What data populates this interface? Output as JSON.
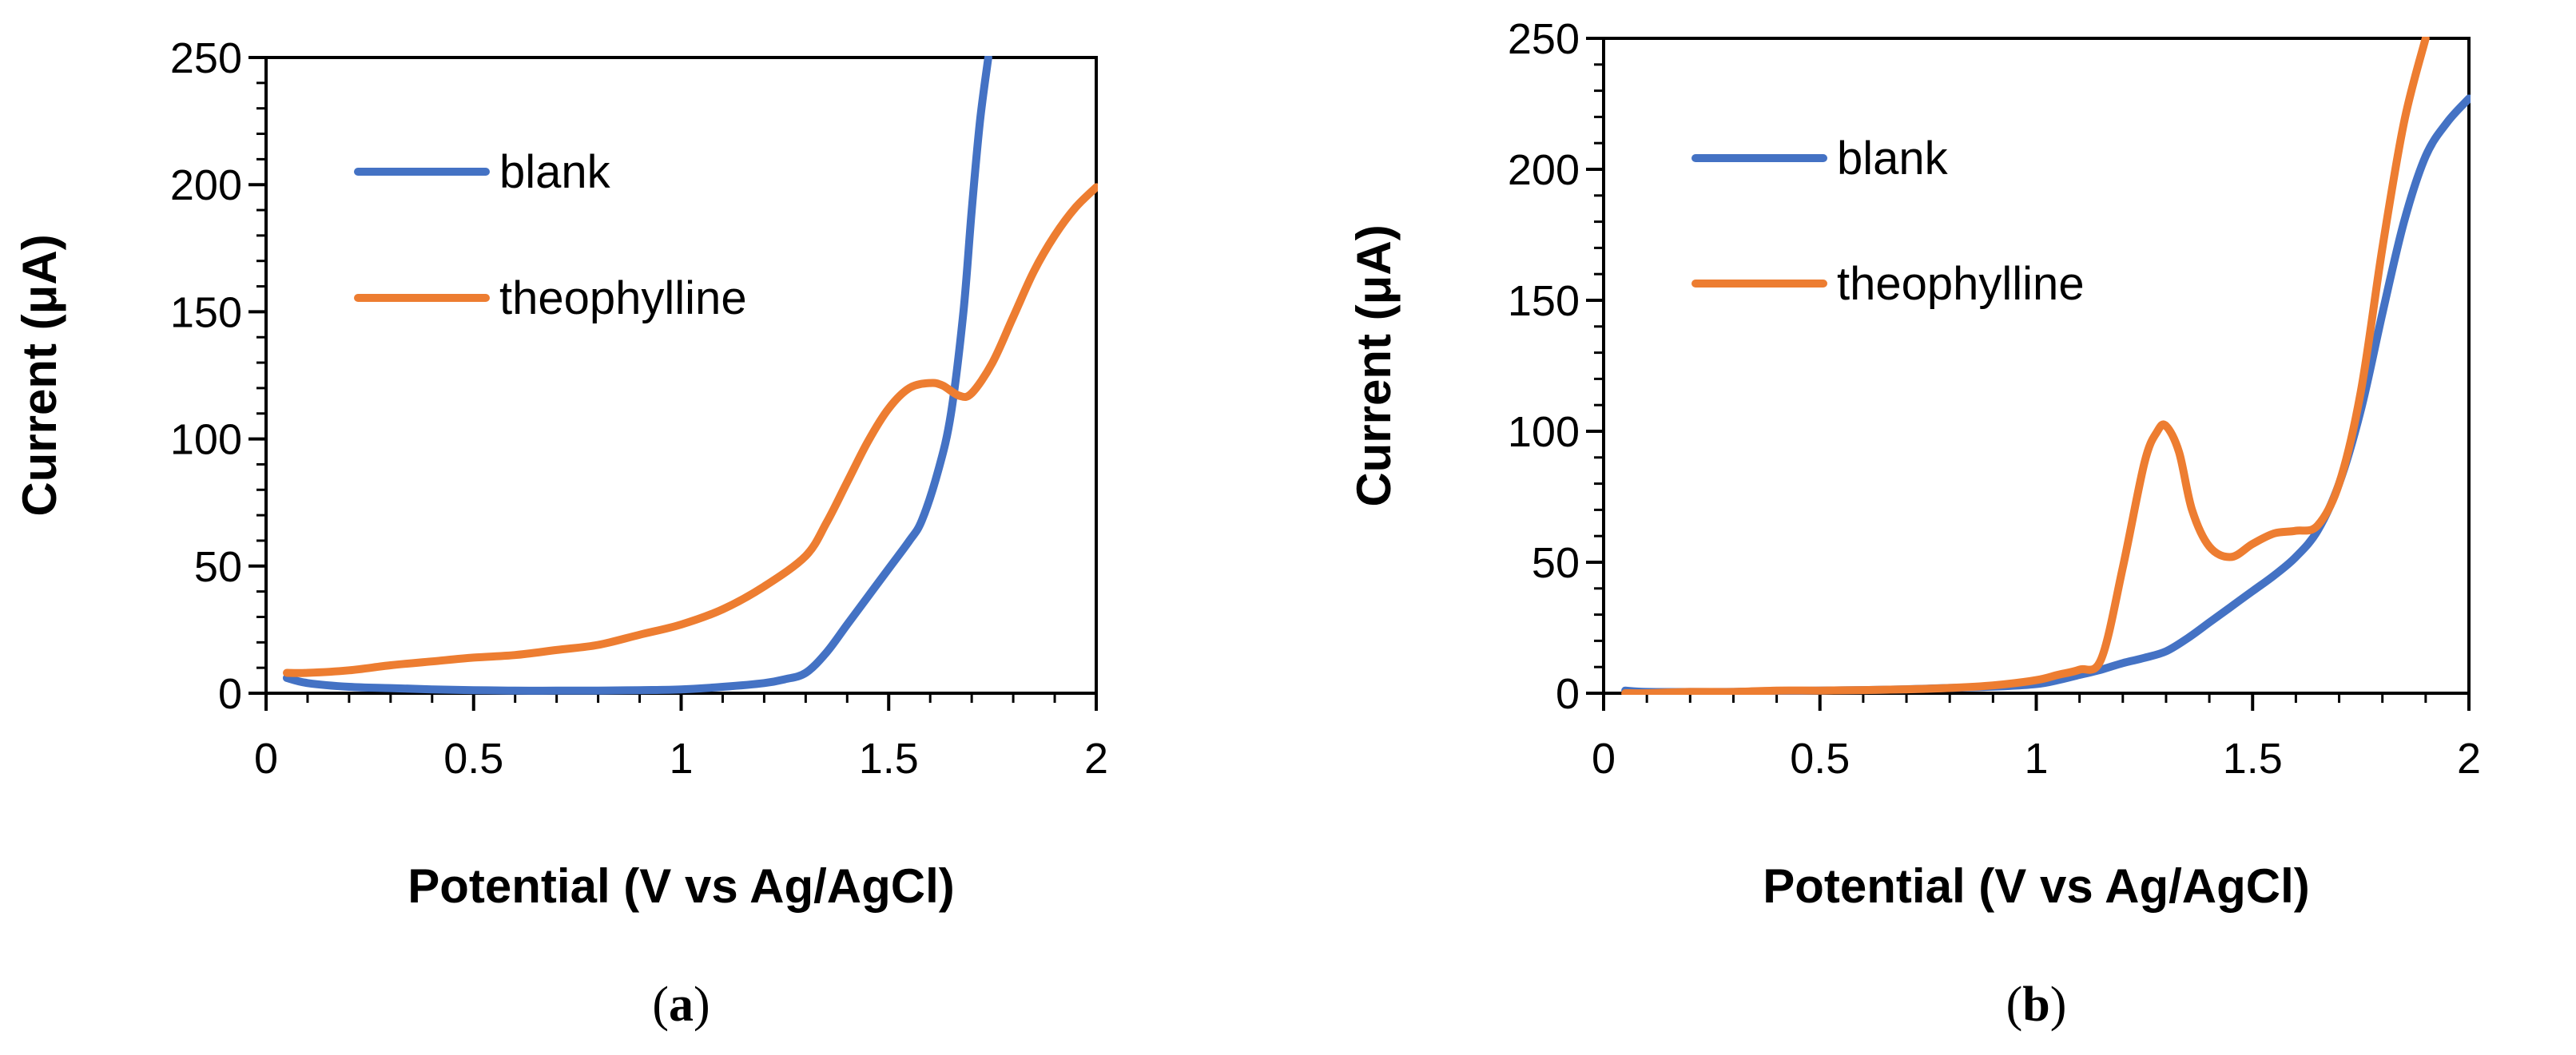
{
  "chart_data": [
    {
      "type": "line",
      "panel_label": "a",
      "caption_open": "(",
      "caption_close": ")",
      "title": "",
      "xlabel": "Potential (V vs Ag/AgCl)",
      "ylabel": "Current (μA)",
      "xlim": [
        0,
        2
      ],
      "ylim": [
        0,
        250
      ],
      "xticks": [
        0,
        0.5,
        1,
        1.5,
        2
      ],
      "xtick_labels": [
        "0",
        "0.5",
        "1",
        "1.5",
        "2"
      ],
      "yticks": [
        0,
        50,
        100,
        150,
        200,
        250
      ],
      "ytick_labels": [
        "0",
        "50",
        "100",
        "150",
        "200",
        "250"
      ],
      "grid": false,
      "legend_position": "top-left",
      "series": [
        {
          "name": "blank",
          "color": "#4472C4",
          "x": [
            0.05,
            0.1,
            0.2,
            0.3,
            0.4,
            0.5,
            0.6,
            0.7,
            0.8,
            0.9,
            1.0,
            1.1,
            1.2,
            1.25,
            1.3,
            1.35,
            1.4,
            1.45,
            1.5,
            1.55,
            1.58,
            1.62,
            1.65,
            1.68,
            1.7,
            1.72,
            1.74
          ],
          "y": [
            6,
            4,
            2.5,
            2,
            1.5,
            1.2,
            1,
            1,
            1,
            1.2,
            1.5,
            2.5,
            4,
            5.5,
            8,
            16,
            27,
            38,
            49,
            60,
            68,
            88,
            110,
            150,
            190,
            225,
            250
          ]
        },
        {
          "name": "theophylline",
          "color": "#ED7D31",
          "x": [
            0.05,
            0.1,
            0.2,
            0.3,
            0.4,
            0.5,
            0.6,
            0.7,
            0.8,
            0.9,
            1.0,
            1.1,
            1.2,
            1.3,
            1.35,
            1.4,
            1.45,
            1.5,
            1.55,
            1.6,
            1.63,
            1.67,
            1.7,
            1.75,
            1.8,
            1.85,
            1.9,
            1.95,
            2.0
          ],
          "y": [
            8,
            8,
            9,
            11,
            12.5,
            14,
            15,
            17,
            19,
            23,
            27,
            33,
            42,
            54,
            67,
            83,
            99,
            112,
            120,
            122,
            121,
            117,
            118,
            130,
            148,
            166,
            180,
            191,
            199
          ]
        }
      ]
    },
    {
      "type": "line",
      "panel_label": "b",
      "caption_open": "(",
      "caption_close": ")",
      "title": "",
      "xlabel": "Potential (V vs Ag/AgCl)",
      "ylabel": "Current (μA)",
      "xlim": [
        0,
        2
      ],
      "ylim": [
        0,
        250
      ],
      "xticks": [
        0,
        0.5,
        1,
        1.5,
        2
      ],
      "xtick_labels": [
        "0",
        "0.5",
        "1",
        "1.5",
        "2"
      ],
      "yticks": [
        0,
        50,
        100,
        150,
        200,
        250
      ],
      "ytick_labels": [
        "0",
        "50",
        "100",
        "150",
        "200",
        "250"
      ],
      "grid": false,
      "legend_position": "top-left",
      "series": [
        {
          "name": "blank",
          "color": "#4472C4",
          "x": [
            0.05,
            0.1,
            0.2,
            0.3,
            0.4,
            0.5,
            0.6,
            0.7,
            0.8,
            0.9,
            1.0,
            1.05,
            1.1,
            1.15,
            1.2,
            1.25,
            1.3,
            1.35,
            1.4,
            1.45,
            1.5,
            1.55,
            1.6,
            1.65,
            1.7,
            1.75,
            1.8,
            1.85,
            1.9,
            1.95,
            2.0
          ],
          "y": [
            1,
            0.5,
            0.5,
            0.5,
            0.8,
            1,
            1.2,
            1.5,
            2,
            2.5,
            3.5,
            5,
            7,
            9,
            11.5,
            13.5,
            16,
            21,
            27,
            33,
            39,
            45,
            52,
            62,
            80,
            108,
            145,
            180,
            205,
            218,
            227
          ]
        },
        {
          "name": "theophylline",
          "color": "#ED7D31",
          "x": [
            0.05,
            0.1,
            0.2,
            0.3,
            0.4,
            0.5,
            0.6,
            0.7,
            0.8,
            0.9,
            1.0,
            1.05,
            1.1,
            1.15,
            1.2,
            1.25,
            1.28,
            1.3,
            1.33,
            1.36,
            1.4,
            1.45,
            1.5,
            1.55,
            1.6,
            1.65,
            1.7,
            1.75,
            1.8,
            1.85,
            1.9
          ],
          "y": [
            0,
            0,
            0.5,
            0.5,
            1,
            1,
            1.2,
            1.5,
            2,
            3,
            5,
            7,
            9,
            13,
            48,
            88,
            100,
            102,
            92,
            70,
            56,
            52,
            57,
            61,
            62,
            64,
            80,
            115,
            170,
            218,
            250
          ]
        }
      ]
    }
  ]
}
